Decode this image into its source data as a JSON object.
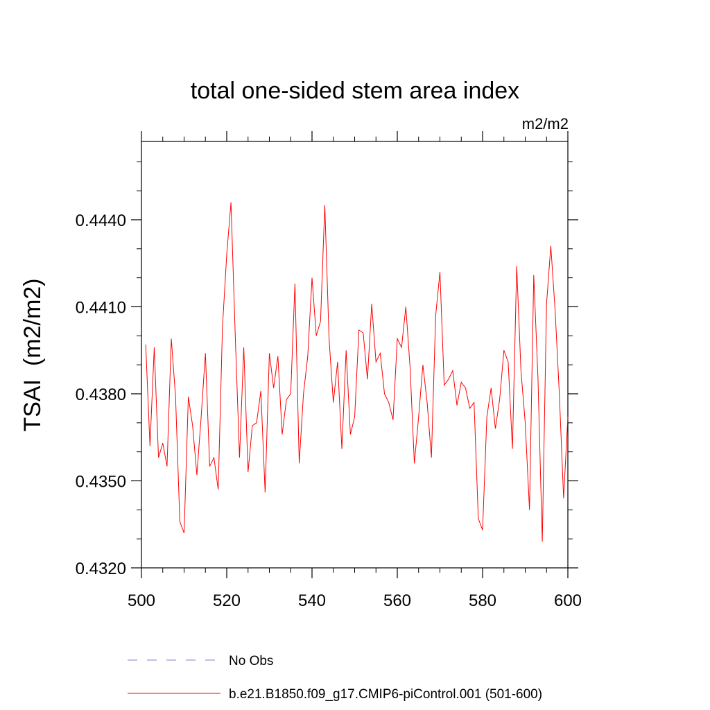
{
  "chart_data": {
    "type": "line",
    "title": "total one-sided stem area index",
    "units_label": "m2/m2",
    "ylabel": "TSAI  (m2/m2)",
    "xlabel": "",
    "xlim": [
      500,
      600
    ],
    "ylim": [
      0.432,
      0.4467
    ],
    "x_ticks": [
      500,
      520,
      540,
      560,
      580,
      600
    ],
    "x_tick_labels": [
      "500",
      "520",
      "540",
      "560",
      "580",
      "600"
    ],
    "y_ticks": [
      0.432,
      0.435,
      0.438,
      0.441,
      0.444
    ],
    "y_tick_labels": [
      "0.4320",
      "0.4350",
      "0.4380",
      "0.4410",
      "0.4440"
    ],
    "grid": false,
    "legend_position": "bottom",
    "series": [
      {
        "name": "No Obs",
        "color": "#8080c0",
        "dash": "dashed",
        "x": [],
        "values": []
      },
      {
        "name": "b.e21.B1850.f09_g17.CMIP6-piControl.001 (501-600)",
        "color": "#ff0000",
        "dash": "solid",
        "x": [
          501,
          502,
          503,
          504,
          505,
          506,
          507,
          508,
          509,
          510,
          511,
          512,
          513,
          514,
          515,
          516,
          517,
          518,
          519,
          520,
          521,
          522,
          523,
          524,
          525,
          526,
          527,
          528,
          529,
          530,
          531,
          532,
          533,
          534,
          535,
          536,
          537,
          538,
          539,
          540,
          541,
          542,
          543,
          544,
          545,
          546,
          547,
          548,
          549,
          550,
          551,
          552,
          553,
          554,
          555,
          556,
          557,
          558,
          559,
          560,
          561,
          562,
          563,
          564,
          565,
          566,
          567,
          568,
          569,
          570,
          571,
          572,
          573,
          574,
          575,
          576,
          577,
          578,
          579,
          580,
          581,
          582,
          583,
          584,
          585,
          586,
          587,
          588,
          589,
          590,
          591,
          592,
          593,
          594,
          595,
          596,
          597,
          598,
          599,
          600
        ],
        "values": [
          0.4397,
          0.4362,
          0.4396,
          0.4358,
          0.4363,
          0.4355,
          0.4399,
          0.4379,
          0.4336,
          0.4332,
          0.4379,
          0.4369,
          0.4352,
          0.4372,
          0.4394,
          0.4355,
          0.4358,
          0.4347,
          0.4403,
          0.4428,
          0.4446,
          0.44,
          0.4358,
          0.4396,
          0.4353,
          0.4369,
          0.437,
          0.4381,
          0.4346,
          0.4394,
          0.4382,
          0.4393,
          0.4366,
          0.4378,
          0.438,
          0.4418,
          0.4356,
          0.438,
          0.4393,
          0.442,
          0.44,
          0.4405,
          0.4445,
          0.4399,
          0.4377,
          0.4391,
          0.4361,
          0.4395,
          0.4366,
          0.4372,
          0.4402,
          0.4401,
          0.4385,
          0.4411,
          0.4391,
          0.4394,
          0.438,
          0.4377,
          0.4371,
          0.4399,
          0.4396,
          0.441,
          0.4389,
          0.4356,
          0.4372,
          0.439,
          0.4377,
          0.4358,
          0.4407,
          0.4422,
          0.4383,
          0.4385,
          0.4388,
          0.4376,
          0.4384,
          0.4382,
          0.4375,
          0.4377,
          0.4337,
          0.4333,
          0.4372,
          0.4382,
          0.4368,
          0.4378,
          0.4395,
          0.4391,
          0.4361,
          0.4424,
          0.4388,
          0.437,
          0.434,
          0.4421,
          0.4385,
          0.4329,
          0.4411,
          0.4431,
          0.4409,
          0.438,
          0.4344,
          0.4372
        ]
      }
    ]
  }
}
